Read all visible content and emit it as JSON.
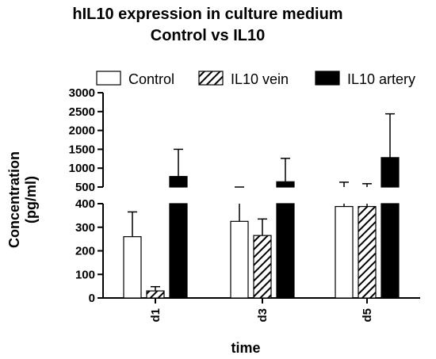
{
  "chart_data": {
    "type": "bar",
    "title": "hIL10 expression in culture medium",
    "subtitle": "Control vs IL10",
    "xlabel": "time",
    "ylabel": "Concentration",
    "ylabel_unit": "(pg/ml)",
    "categories": [
      "d1",
      "d3",
      "d5"
    ],
    "y_break": {
      "lower_range": [
        0,
        400
      ],
      "upper_range": [
        500,
        3000
      ],
      "lower_ticks": [
        "0",
        "100",
        "200",
        "300",
        "400"
      ],
      "upper_ticks": [
        "500",
        "1000",
        "1500",
        "2000",
        "2500",
        "3000"
      ]
    },
    "series": [
      {
        "name": "Control",
        "fill": "#ffffff",
        "pattern": "none",
        "values": [
          260,
          325,
          388
        ],
        "error": [
          105,
          80,
          240
        ]
      },
      {
        "name": "IL10 vein",
        "fill": "#ffffff",
        "pattern": "hatch",
        "values": [
          30,
          265,
          388
        ],
        "error": [
          18,
          70,
          200
        ]
      },
      {
        "name": "IL10 artery",
        "fill": "#000000",
        "pattern": "none",
        "values": [
          780,
          640,
          1280
        ],
        "error": [
          720,
          620,
          1160
        ]
      }
    ],
    "legend_position": "top",
    "grid": false
  }
}
